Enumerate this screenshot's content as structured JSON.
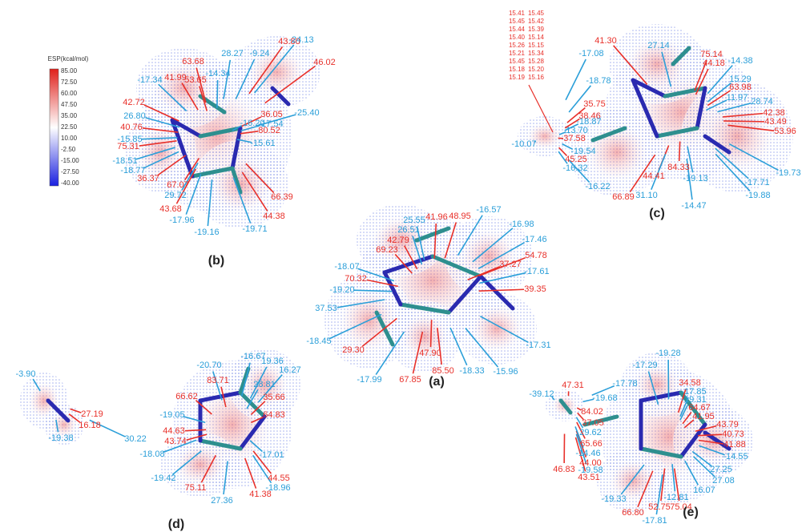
{
  "legend": {
    "title": "ESP(kcal/mol)",
    "ticks": [
      "85.00",
      "72.50",
      "60.00",
      "47.50",
      "35.00",
      "22.50",
      "10.00",
      "-2.50",
      "-15.00",
      "-27.50",
      "-40.00"
    ]
  },
  "colors": {
    "red": "#e8302a",
    "blue": "#2b9fd9"
  },
  "panels": {
    "a": {
      "label": "(a)",
      "red": [
        "41.96",
        "48.95",
        "42.79",
        "69.23",
        "54.78",
        "37.27",
        "70.32",
        "39.35",
        "29.30",
        "47.90",
        "85.50",
        "67.85"
      ],
      "blue": [
        "25.55",
        "-16.57",
        "26.51",
        "-16.98",
        "-17.46",
        "-18.07",
        "-17.61",
        "-19.20",
        "37.53",
        "-18.45",
        "-17.31",
        "-18.33",
        "-15.96",
        "-17.99"
      ]
    },
    "b": {
      "label": "(b)",
      "red": [
        "43.80",
        "63.68",
        "46.02",
        "41.99",
        "53.65",
        "42.72",
        "36.05",
        "40.76",
        "80.52",
        "75.31",
        "36.37",
        "67.07",
        "43.68",
        "66.39",
        "44.38"
      ],
      "blue": [
        "-24.13",
        "28.27",
        "-9.24",
        "-14.34",
        "-17.34",
        "-25.40",
        "26.80",
        "-17.54",
        "-16.20",
        "-15.85",
        "-15.61",
        "-18.51",
        "-18.77",
        "29.72",
        "-17.96",
        "-19.16",
        "-19.71"
      ]
    },
    "c": {
      "label": "(c)",
      "stacked": [
        [
          "15.41",
          "15.45"
        ],
        [
          "15.45",
          "15.42"
        ],
        [
          "15.44",
          "15.39"
        ],
        [
          "15.40",
          "15.14"
        ],
        [
          "15.26",
          "15.15"
        ],
        [
          "15.21",
          "15.34"
        ],
        [
          "15.45",
          "15.28"
        ],
        [
          "15.18",
          "15.20"
        ],
        [
          "15.19",
          "15.16"
        ]
      ],
      "red": [
        "41.30",
        "75.14",
        "44.18",
        "63.98",
        "35.75",
        "42.38",
        "38.46",
        "43.49",
        "53.96",
        "37.58",
        "45.25",
        "84.33",
        "44.41",
        "66.89"
      ],
      "blue": [
        "27.14",
        "-17.08",
        "-14.38",
        "-18.78",
        "15.29",
        "11.97",
        "28.74",
        "-18.87",
        "13.70",
        "-10.07",
        "-19.54",
        "-16.32",
        "-16.22",
        "-19.13",
        "31.10",
        "-19.73",
        "-17.71",
        "-14.47",
        "-19.88"
      ]
    },
    "d": {
      "label": "(d)",
      "red": [
        "27.19",
        "16.18",
        "83.71",
        "66.62",
        "35.66",
        "44.63",
        "64.83",
        "43.74",
        "44.55",
        "75.11",
        "41.38"
      ],
      "blue": [
        "-3.90",
        "-19.38",
        "-16.67",
        "-20.70",
        "19.36",
        "16.27",
        "28.81",
        "-19.05",
        "30.22",
        "-18.08",
        "-17.01",
        "-19.42",
        "-18.96",
        "27.36"
      ]
    },
    "e": {
      "label": "(e)",
      "red": [
        "34.58",
        "64.67",
        "47.31",
        "84.02",
        "41.95",
        "43.79",
        "37.05",
        "40.73",
        "41.88",
        "65.66",
        "44.00",
        "46.83",
        "43.51",
        "75.04",
        "52.75",
        "66.80"
      ],
      "blue": [
        "-19.28",
        "-17.29",
        "-17.78",
        "-17.85",
        "-19.31",
        "-19.68",
        "-39.12",
        "29.62",
        "-14.46",
        "-14.55",
        "-19.58",
        "27.25",
        "27.08",
        "16.07",
        "-19.33",
        "-12.81",
        "-17.81"
      ]
    }
  }
}
